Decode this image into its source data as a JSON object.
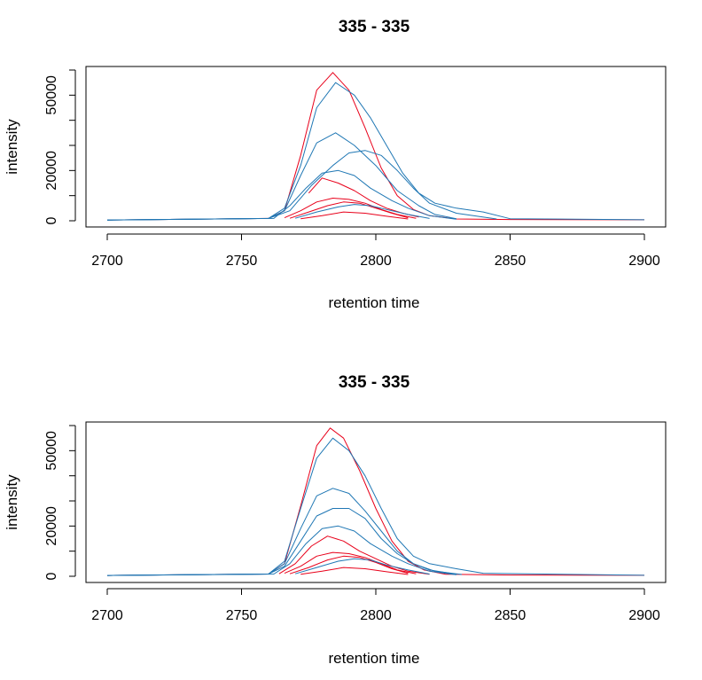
{
  "chart_data": [
    {
      "type": "line",
      "title": "335 - 335",
      "xlabel": "retention time",
      "ylabel": "intensity",
      "xlim": [
        2700,
        2900
      ],
      "ylim": [
        0,
        60000
      ],
      "xticks": [
        "2700",
        "2750",
        "2800",
        "2850",
        "2900"
      ],
      "yticks": [
        "0",
        "20000",
        "50000"
      ],
      "colors": {
        "blue": "#1f77b4",
        "red": "#e8001a"
      },
      "series": [
        {
          "color": "red",
          "x": [
            2700,
            2760,
            2766,
            2772,
            2778,
            2784,
            2790,
            2796,
            2802,
            2808,
            2814,
            2820,
            2830,
            2850,
            2900
          ],
          "values": [
            300,
            900,
            4000,
            26000,
            52000,
            59000,
            52000,
            37000,
            21000,
            10000,
            4500,
            2000,
            700,
            500,
            400
          ]
        },
        {
          "color": "blue",
          "x": [
            2700,
            2760,
            2766,
            2772,
            2778,
            2785,
            2792,
            2798,
            2804,
            2810,
            2816,
            2822,
            2830,
            2840,
            2850,
            2900
          ],
          "values": [
            300,
            900,
            5000,
            22000,
            45000,
            55000,
            50000,
            41000,
            30000,
            19000,
            11000,
            7000,
            5000,
            3500,
            800,
            400
          ]
        },
        {
          "color": "blue",
          "x": [
            2700,
            2760,
            2766,
            2772,
            2778,
            2785,
            2792,
            2800,
            2808,
            2816,
            2822,
            2830
          ],
          "values": [
            300,
            900,
            4000,
            18000,
            31000,
            35000,
            30000,
            22000,
            12000,
            6000,
            2500,
            800
          ]
        },
        {
          "color": "blue",
          "x": [
            2700,
            2760,
            2768,
            2776,
            2784,
            2790,
            2796,
            2802,
            2808,
            2814,
            2820,
            2830,
            2845
          ],
          "values": [
            300,
            900,
            4000,
            14000,
            22000,
            27000,
            28000,
            26000,
            20000,
            13000,
            7000,
            3000,
            700
          ]
        },
        {
          "color": "blue",
          "x": [
            2700,
            2762,
            2768,
            2774,
            2780,
            2786,
            2792,
            2798,
            2806,
            2812,
            2820,
            2830
          ],
          "values": [
            300,
            900,
            6000,
            13000,
            19000,
            20000,
            18000,
            13000,
            8000,
            5000,
            2000,
            600
          ]
        },
        {
          "color": "red",
          "x": [
            2775,
            2780,
            2786,
            2792,
            2798,
            2804,
            2810,
            2816
          ],
          "values": [
            11000,
            17000,
            15000,
            12000,
            8000,
            5000,
            3000,
            1500
          ]
        },
        {
          "color": "red",
          "x": [
            2766,
            2772,
            2778,
            2784,
            2790,
            2796,
            2802,
            2808,
            2815
          ],
          "values": [
            1200,
            4000,
            7500,
            9000,
            8500,
            7000,
            4500,
            2500,
            1000
          ]
        },
        {
          "color": "red",
          "x": [
            2768,
            2775,
            2782,
            2788,
            2794,
            2800,
            2806,
            2812
          ],
          "values": [
            1000,
            3500,
            6000,
            7500,
            7000,
            5000,
            3000,
            1200
          ]
        },
        {
          "color": "blue",
          "x": [
            2770,
            2778,
            2786,
            2792,
            2798,
            2804,
            2812,
            2820
          ],
          "values": [
            1000,
            3500,
            5500,
            6500,
            6000,
            4500,
            2500,
            900
          ]
        },
        {
          "color": "red",
          "x": [
            2772,
            2780,
            2788,
            2796,
            2804,
            2812
          ],
          "values": [
            800,
            2000,
            3500,
            3000,
            1800,
            700
          ]
        }
      ]
    },
    {
      "type": "line",
      "title": "335 - 335",
      "xlabel": "retention time",
      "ylabel": "intensity",
      "xlim": [
        2700,
        2900
      ],
      "ylim": [
        0,
        60000
      ],
      "xticks": [
        "2700",
        "2750",
        "2800",
        "2850",
        "2900"
      ],
      "yticks": [
        "0",
        "20000",
        "50000"
      ],
      "colors": {
        "blue": "#1f77b4",
        "red": "#e8001a"
      },
      "series": [
        {
          "color": "red",
          "x": [
            2700,
            2760,
            2766,
            2772,
            2778,
            2783,
            2788,
            2794,
            2800,
            2806,
            2812,
            2818,
            2826,
            2850,
            2900
          ],
          "values": [
            300,
            900,
            5000,
            28000,
            52000,
            59000,
            55000,
            42000,
            27000,
            14000,
            6000,
            2500,
            800,
            500,
            400
          ]
        },
        {
          "color": "blue",
          "x": [
            2700,
            2760,
            2766,
            2772,
            2778,
            2784,
            2790,
            2796,
            2802,
            2808,
            2814,
            2820,
            2830,
            2840,
            2900
          ],
          "values": [
            300,
            900,
            6000,
            27000,
            47000,
            55000,
            50000,
            40000,
            27000,
            15000,
            8000,
            5000,
            3000,
            1200,
            400
          ]
        },
        {
          "color": "blue",
          "x": [
            2700,
            2760,
            2766,
            2772,
            2778,
            2784,
            2790,
            2796,
            2802,
            2808,
            2814,
            2820,
            2830
          ],
          "values": [
            300,
            900,
            5000,
            19000,
            32000,
            35000,
            33000,
            26000,
            18000,
            10000,
            5000,
            2500,
            800
          ]
        },
        {
          "color": "blue",
          "x": [
            2700,
            2760,
            2766,
            2772,
            2778,
            2784,
            2790,
            2796,
            2802,
            2808,
            2814,
            2822,
            2832
          ],
          "values": [
            300,
            900,
            4000,
            14000,
            24000,
            27000,
            27000,
            23000,
            15000,
            9000,
            5000,
            2000,
            700
          ]
        },
        {
          "color": "blue",
          "x": [
            2700,
            2762,
            2768,
            2774,
            2780,
            2786,
            2792,
            2798,
            2806,
            2812,
            2820,
            2830
          ],
          "values": [
            300,
            900,
            5000,
            13000,
            19000,
            20000,
            18000,
            13000,
            8000,
            5000,
            2000,
            600
          ]
        },
        {
          "color": "red",
          "x": [
            2764,
            2770,
            2776,
            2782,
            2788,
            2794,
            2800,
            2806,
            2812,
            2820
          ],
          "values": [
            1000,
            5000,
            12000,
            16000,
            14000,
            10000,
            7000,
            4000,
            2000,
            800
          ]
        },
        {
          "color": "red",
          "x": [
            2766,
            2772,
            2778,
            2784,
            2790,
            2796,
            2802,
            2808,
            2815
          ],
          "values": [
            1200,
            4000,
            8000,
            9500,
            9000,
            7500,
            5000,
            2500,
            1000
          ]
        },
        {
          "color": "red",
          "x": [
            2768,
            2775,
            2782,
            2788,
            2794,
            2800,
            2806,
            2812
          ],
          "values": [
            1000,
            3500,
            6500,
            8000,
            7500,
            5500,
            3000,
            1200
          ]
        },
        {
          "color": "blue",
          "x": [
            2770,
            2778,
            2786,
            2792,
            2798,
            2804,
            2812,
            2820
          ],
          "values": [
            1000,
            3500,
            6000,
            7000,
            6500,
            4500,
            2500,
            900
          ]
        },
        {
          "color": "red",
          "x": [
            2772,
            2780,
            2788,
            2796,
            2804,
            2812
          ],
          "values": [
            800,
            2000,
            3500,
            3000,
            1800,
            700
          ]
        }
      ]
    }
  ]
}
